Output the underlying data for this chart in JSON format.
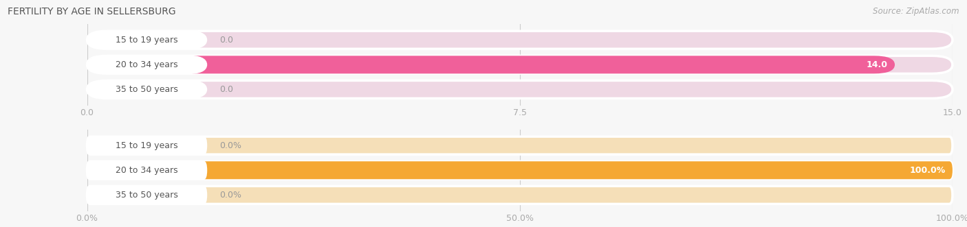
{
  "title": "Female Fertility by Age in Sellersburg",
  "title_display": "FERTILITY BY AGE IN SELLERSBURG",
  "source": "Source: ZipAtlas.com",
  "top_chart": {
    "categories": [
      "15 to 19 years",
      "20 to 34 years",
      "35 to 50 years"
    ],
    "values": [
      0.0,
      14.0,
      0.0
    ],
    "xlim": [
      0,
      15.0
    ],
    "xticks": [
      0.0,
      7.5,
      15.0
    ],
    "bar_color": "#F0609A",
    "bar_bg_color": "#EFD8E4",
    "value_color_inside": "#ffffff",
    "value_color_outside": "#999999"
  },
  "bottom_chart": {
    "categories": [
      "15 to 19 years",
      "20 to 34 years",
      "35 to 50 years"
    ],
    "values": [
      0.0,
      100.0,
      0.0
    ],
    "xlim": [
      0,
      100.0
    ],
    "xticks": [
      0.0,
      50.0,
      100.0
    ],
    "xtick_labels": [
      "0.0%",
      "50.0%",
      "100.0%"
    ],
    "bar_color": "#F5A833",
    "bar_bg_color": "#F5DFB8",
    "value_color_inside": "#ffffff",
    "value_color_outside": "#999999"
  },
  "bg_color": "#f7f7f7",
  "title_fontsize": 10,
  "label_fontsize": 9,
  "tick_fontsize": 9,
  "source_fontsize": 8.5
}
